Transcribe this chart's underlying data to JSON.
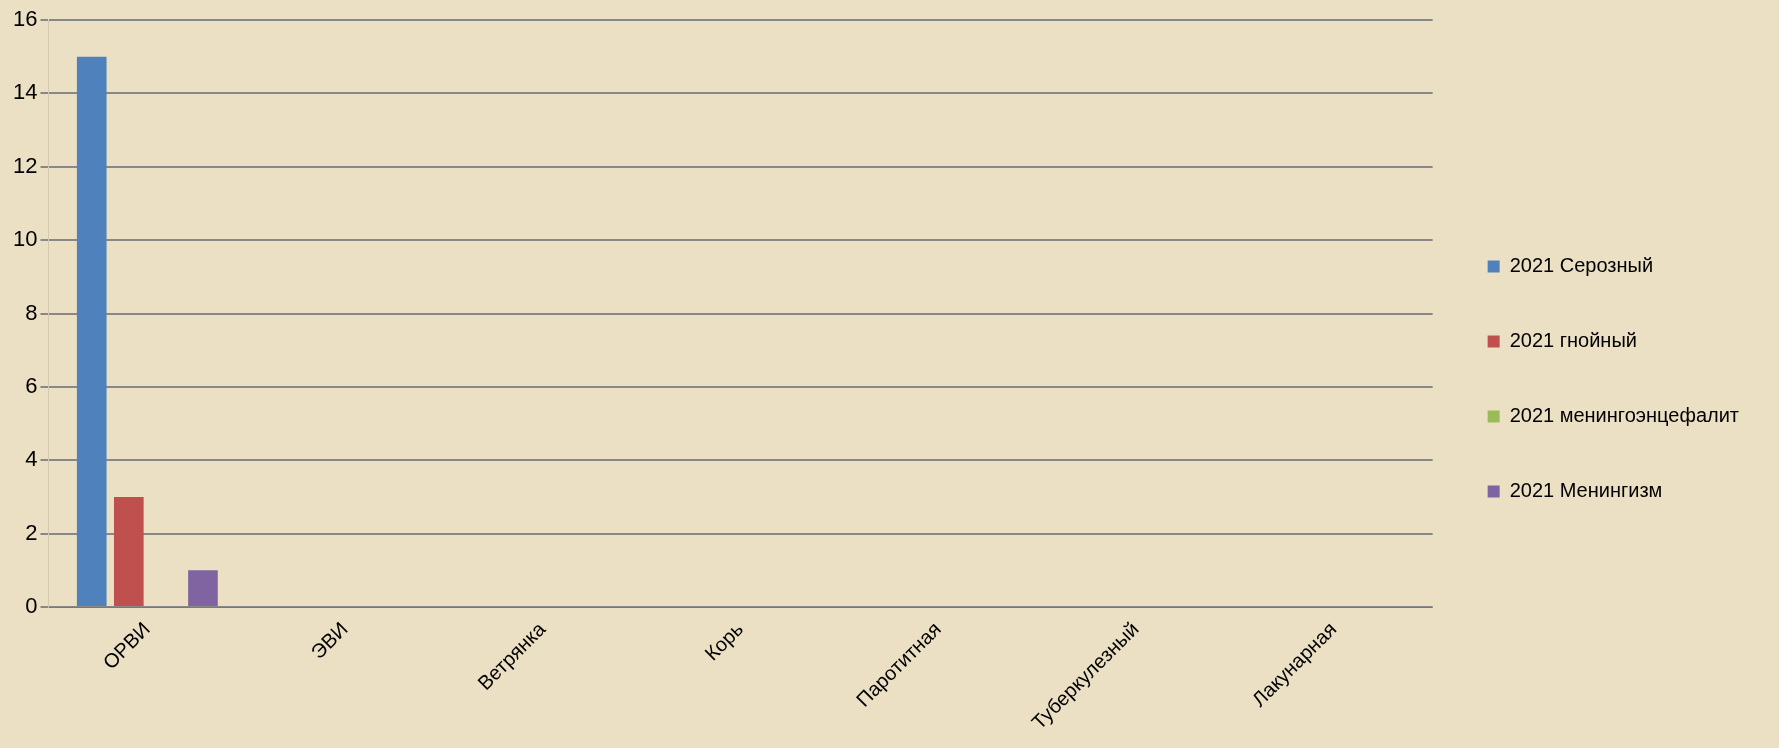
{
  "chart_data": {
    "type": "bar",
    "categories": [
      "ОРВИ",
      "ЭВИ",
      "Ветрянка",
      "Корь",
      "Паротитная",
      "Туберкулезный",
      "Лакунарная"
    ],
    "series": [
      {
        "name": "2021 Серозный",
        "color": "#4f81bd",
        "values": [
          15,
          null,
          null,
          null,
          null,
          null,
          null
        ]
      },
      {
        "name": "2021 гнойный",
        "color": "#c0504d",
        "values": [
          3,
          null,
          null,
          null,
          null,
          null,
          null
        ]
      },
      {
        "name": "2021 менингоэнцефалит",
        "color": "#9bbb59",
        "values": [
          null,
          null,
          null,
          null,
          null,
          null,
          null
        ]
      },
      {
        "name": "2021 Менингизм",
        "color": "#8064a2",
        "values": [
          1,
          null,
          null,
          null,
          null,
          null,
          null
        ]
      }
    ],
    "ylim": [
      0,
      16
    ],
    "yticks": [
      0,
      2,
      4,
      6,
      8,
      10,
      12,
      14,
      16
    ],
    "grid": "y",
    "legend": "right"
  }
}
